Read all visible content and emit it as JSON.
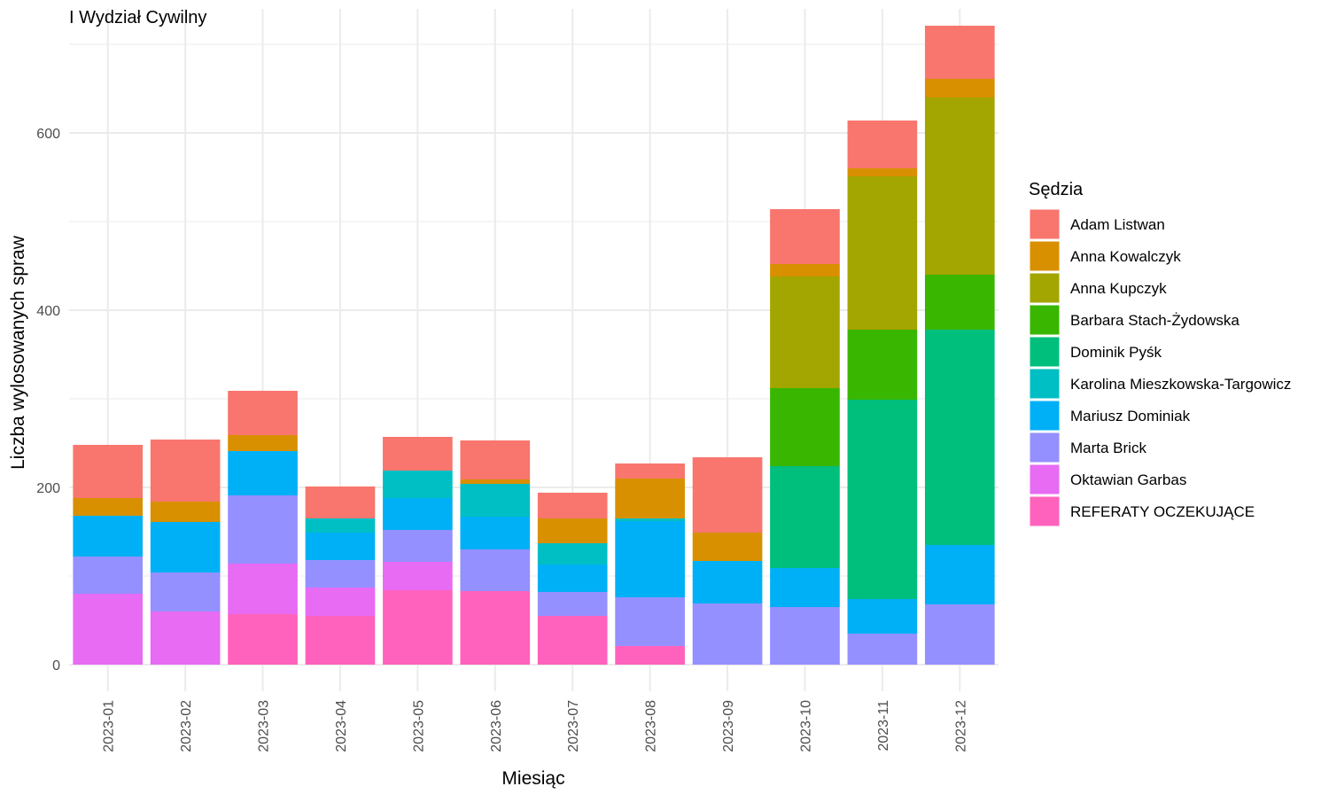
{
  "chart_data": {
    "type": "bar",
    "stacked": true,
    "title": "I Wydział Cywilny",
    "xlabel": "Miesiąc",
    "ylabel": "Liczba wylosowanych spraw",
    "ylim": [
      -30,
      740
    ],
    "y_ticks": [
      0,
      200,
      400,
      600
    ],
    "grid": true,
    "legend_title": "Sędzia",
    "legend_position": "right",
    "categories": [
      "2023-01",
      "2023-02",
      "2023-03",
      "2023-04",
      "2023-05",
      "2023-06",
      "2023-07",
      "2023-08",
      "2023-09",
      "2023-10",
      "2023-11",
      "2023-12"
    ],
    "series": [
      {
        "name": "Adam Listwan",
        "color": "#F8766D",
        "values": [
          60,
          70,
          50,
          36,
          38,
          44,
          29,
          17,
          85,
          62,
          54,
          60
        ]
      },
      {
        "name": "Anna Kowalczyk",
        "color": "#D89000",
        "values": [
          20,
          23,
          18,
          0,
          0,
          5,
          28,
          45,
          32,
          14,
          9,
          21
        ]
      },
      {
        "name": "Anna Kupczyk",
        "color": "#A3A500",
        "values": [
          0,
          0,
          0,
          0,
          0,
          0,
          0,
          0,
          0,
          126,
          173,
          200
        ]
      },
      {
        "name": "Barbara Stach-Żydowska",
        "color": "#39B600",
        "values": [
          0,
          0,
          0,
          0,
          0,
          0,
          0,
          0,
          0,
          88,
          79,
          62
        ]
      },
      {
        "name": "Dominik Pyśk",
        "color": "#00BF7D",
        "values": [
          0,
          0,
          0,
          0,
          0,
          0,
          0,
          0,
          0,
          115,
          225,
          243
        ]
      },
      {
        "name": "Karolina Mieszkowska-Targowicz",
        "color": "#00BFC4",
        "values": [
          0,
          0,
          0,
          16,
          31,
          37,
          24,
          3,
          0,
          0,
          0,
          0
        ]
      },
      {
        "name": "Mariusz Dominiak",
        "color": "#00B0F6",
        "values": [
          46,
          57,
          50,
          31,
          36,
          37,
          31,
          86,
          48,
          44,
          39,
          67
        ]
      },
      {
        "name": "Marta Brick",
        "color": "#9590FF",
        "values": [
          42,
          44,
          77,
          31,
          36,
          47,
          27,
          55,
          69,
          65,
          35,
          68
        ]
      },
      {
        "name": "Oktawian Garbas",
        "color": "#E76BF3",
        "values": [
          80,
          60,
          57,
          32,
          32,
          0,
          0,
          0,
          0,
          0,
          0,
          0
        ]
      },
      {
        "name": "REFERATY OCZEKUJĄCE",
        "color": "#FF62BC",
        "values": [
          0,
          0,
          57,
          55,
          84,
          83,
          55,
          21,
          0,
          0,
          0,
          0
        ]
      }
    ]
  }
}
